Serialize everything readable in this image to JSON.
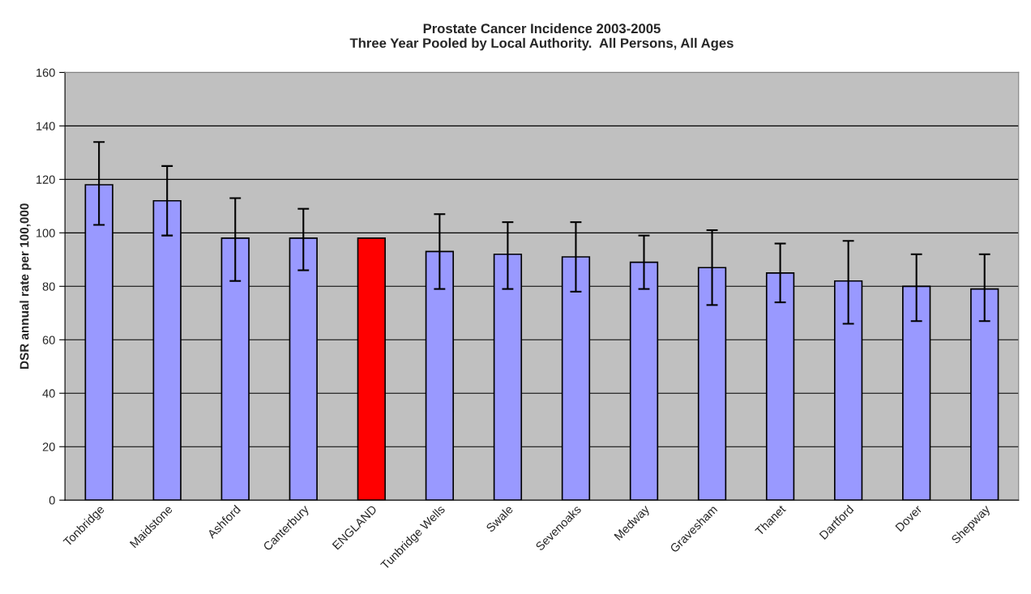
{
  "chart_data": {
    "type": "bar",
    "title": "Prostate Cancer Incidence 2003-2005\nThree Year Pooled by Local Authority.  All Persons, All Ages",
    "ylabel": "DSR annual rate per 100,000",
    "categories": [
      "Tonbridge",
      "Maidstone",
      "Ashford",
      "Canterbury",
      "ENGLAND",
      "Tunbridge Wells",
      "Swale",
      "Sevenoaks",
      "Medway",
      "Gravesham",
      "Thanet",
      "Dartford",
      "Dover",
      "Shepway"
    ],
    "values": [
      118,
      112,
      98,
      98,
      98,
      93,
      92,
      91,
      89,
      87,
      85,
      82,
      80,
      79
    ],
    "colors": [
      "#9999ff",
      "#9999ff",
      "#9999ff",
      "#9999ff",
      "#ff0000",
      "#9999ff",
      "#9999ff",
      "#9999ff",
      "#9999ff",
      "#9999ff",
      "#9999ff",
      "#9999ff",
      "#9999ff",
      "#9999ff"
    ],
    "errors": [
      [
        103,
        134
      ],
      [
        99,
        125
      ],
      [
        82,
        113
      ],
      [
        86,
        109
      ],
      null,
      [
        79,
        107
      ],
      [
        79,
        104
      ],
      [
        78,
        104
      ],
      [
        79,
        99
      ],
      [
        73,
        101
      ],
      [
        74,
        96
      ],
      [
        66,
        97
      ],
      [
        67,
        92
      ],
      [
        67,
        92
      ]
    ],
    "ylim": [
      0,
      160
    ],
    "yticks": [
      0,
      20,
      40,
      60,
      80,
      100,
      120,
      140,
      160
    ],
    "grid": "y"
  }
}
